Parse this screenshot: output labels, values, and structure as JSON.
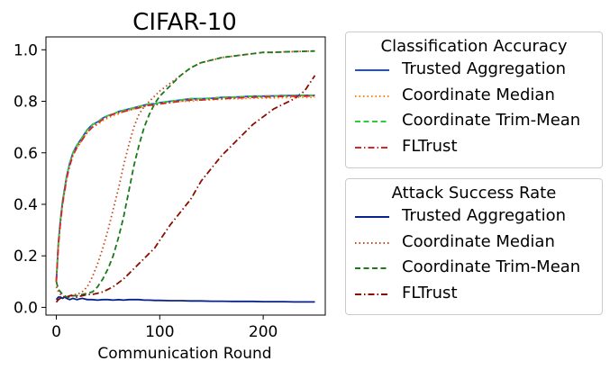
{
  "chart_data": {
    "type": "line",
    "title": "CIFAR-10",
    "xlabel": "Communication Round",
    "ylabel": "",
    "xlim": [
      -10,
      260
    ],
    "ylim": [
      -0.03,
      1.05
    ],
    "xticks": [
      0,
      100,
      200
    ],
    "xtick_labels": [
      "0",
      "100",
      "200"
    ],
    "yticks": [
      0.0,
      0.2,
      0.4,
      0.6,
      0.8,
      1.0
    ],
    "ytick_labels": [
      "0.0",
      "0.2",
      "0.4",
      "0.6",
      "0.8",
      "1.0"
    ],
    "grid": false,
    "x": [
      0,
      2,
      4,
      6,
      8,
      10,
      13,
      16,
      20,
      25,
      30,
      35,
      40,
      45,
      50,
      55,
      60,
      65,
      70,
      75,
      80,
      85,
      90,
      95,
      100,
      110,
      120,
      130,
      140,
      150,
      160,
      170,
      180,
      190,
      200,
      210,
      220,
      230,
      240,
      250
    ],
    "legends": [
      {
        "title": "Classification Accuracy",
        "position": "upper right, outside",
        "series": [
          {
            "name": "Trusted Aggregation",
            "color": "#1f4fd6",
            "dash": "solid",
            "values": [
              0.1,
              0.25,
              0.34,
              0.41,
              0.46,
              0.51,
              0.56,
              0.6,
              0.63,
              0.66,
              0.69,
              0.71,
              0.72,
              0.735,
              0.745,
              0.75,
              0.76,
              0.765,
              0.77,
              0.775,
              0.78,
              0.785,
              0.79,
              0.79,
              0.795,
              0.8,
              0.805,
              0.81,
              0.81,
              0.812,
              0.815,
              0.816,
              0.818,
              0.82,
              0.82,
              0.821,
              0.822,
              0.822,
              0.823,
              0.823
            ]
          },
          {
            "name": "Coordinate Median",
            "color": "#ff7f0e",
            "dash": "dotted",
            "values": [
              0.1,
              0.24,
              0.33,
              0.4,
              0.45,
              0.5,
              0.55,
              0.59,
              0.62,
              0.65,
              0.68,
              0.7,
              0.71,
              0.725,
              0.735,
              0.745,
              0.75,
              0.76,
              0.765,
              0.77,
              0.775,
              0.78,
              0.785,
              0.785,
              0.79,
              0.795,
              0.8,
              0.8,
              0.805,
              0.806,
              0.808,
              0.81,
              0.81,
              0.812,
              0.812,
              0.813,
              0.814,
              0.815,
              0.815,
              0.816
            ]
          },
          {
            "name": "Coordinate Trim-Mean",
            "color": "#2ecc40",
            "dash": "dashed",
            "values": [
              0.1,
              0.25,
              0.34,
              0.41,
              0.46,
              0.51,
              0.56,
              0.6,
              0.63,
              0.66,
              0.69,
              0.71,
              0.72,
              0.735,
              0.745,
              0.75,
              0.76,
              0.765,
              0.77,
              0.775,
              0.78,
              0.785,
              0.79,
              0.79,
              0.795,
              0.8,
              0.805,
              0.81,
              0.81,
              0.812,
              0.815,
              0.816,
              0.818,
              0.82,
              0.82,
              0.821,
              0.822,
              0.822,
              0.823,
              0.823
            ]
          },
          {
            "name": "FLTrust",
            "color": "#d62728",
            "dash": "dashdot",
            "values": [
              0.1,
              0.24,
              0.33,
              0.4,
              0.45,
              0.5,
              0.55,
              0.59,
              0.62,
              0.65,
              0.68,
              0.7,
              0.715,
              0.73,
              0.74,
              0.75,
              0.755,
              0.76,
              0.765,
              0.77,
              0.775,
              0.78,
              0.785,
              0.785,
              0.79,
              0.795,
              0.8,
              0.805,
              0.805,
              0.808,
              0.81,
              0.812,
              0.814,
              0.816,
              0.817,
              0.818,
              0.819,
              0.82,
              0.82,
              0.821
            ]
          }
        ]
      },
      {
        "title": "Attack Success Rate",
        "position": "lower right, outside",
        "series": [
          {
            "name": "Trusted Aggregation",
            "color": "#08238c",
            "dash": "solid",
            "values": [
              0.03,
              0.04,
              0.04,
              0.035,
              0.04,
              0.035,
              0.03,
              0.035,
              0.03,
              0.035,
              0.03,
              0.03,
              0.028,
              0.03,
              0.03,
              0.028,
              0.03,
              0.028,
              0.03,
              0.03,
              0.03,
              0.028,
              0.028,
              0.027,
              0.027,
              0.026,
              0.026,
              0.025,
              0.025,
              0.024,
              0.024,
              0.023,
              0.023,
              0.023,
              0.022,
              0.022,
              0.022,
              0.021,
              0.021,
              0.021
            ]
          },
          {
            "name": "Coordinate Median",
            "color": "#c5461c",
            "dash": "dotted",
            "values": [
              0.08,
              0.06,
              0.05,
              0.045,
              0.04,
              0.04,
              0.045,
              0.05,
              0.05,
              0.06,
              0.08,
              0.12,
              0.17,
              0.23,
              0.3,
              0.38,
              0.46,
              0.55,
              0.63,
              0.7,
              0.75,
              0.78,
              0.8,
              0.82,
              0.84,
              0.87,
              0.9,
              0.93,
              0.95,
              0.96,
              0.97,
              0.975,
              0.98,
              0.985,
              0.99,
              0.99,
              0.992,
              0.993,
              0.994,
              0.995
            ]
          },
          {
            "name": "Coordinate Trim-Mean",
            "color": "#1a7a1a",
            "dash": "dashed",
            "values": [
              0.1,
              0.07,
              0.06,
              0.05,
              0.045,
              0.04,
              0.04,
              0.045,
              0.045,
              0.05,
              0.055,
              0.06,
              0.08,
              0.11,
              0.15,
              0.2,
              0.27,
              0.35,
              0.45,
              0.55,
              0.63,
              0.7,
              0.75,
              0.79,
              0.82,
              0.86,
              0.9,
              0.93,
              0.95,
              0.96,
              0.97,
              0.975,
              0.98,
              0.985,
              0.99,
              0.99,
              0.992,
              0.993,
              0.994,
              0.995
            ]
          },
          {
            "name": "FLTrust",
            "color": "#8b0d00",
            "dash": "dashdot",
            "values": [
              0.02,
              0.03,
              0.035,
              0.04,
              0.04,
              0.04,
              0.045,
              0.045,
              0.04,
              0.045,
              0.05,
              0.05,
              0.055,
              0.06,
              0.07,
              0.08,
              0.095,
              0.11,
              0.13,
              0.15,
              0.17,
              0.19,
              0.21,
              0.23,
              0.26,
              0.32,
              0.37,
              0.42,
              0.49,
              0.54,
              0.59,
              0.63,
              0.67,
              0.71,
              0.74,
              0.77,
              0.79,
              0.81,
              0.84,
              0.9
            ]
          }
        ]
      }
    ]
  }
}
